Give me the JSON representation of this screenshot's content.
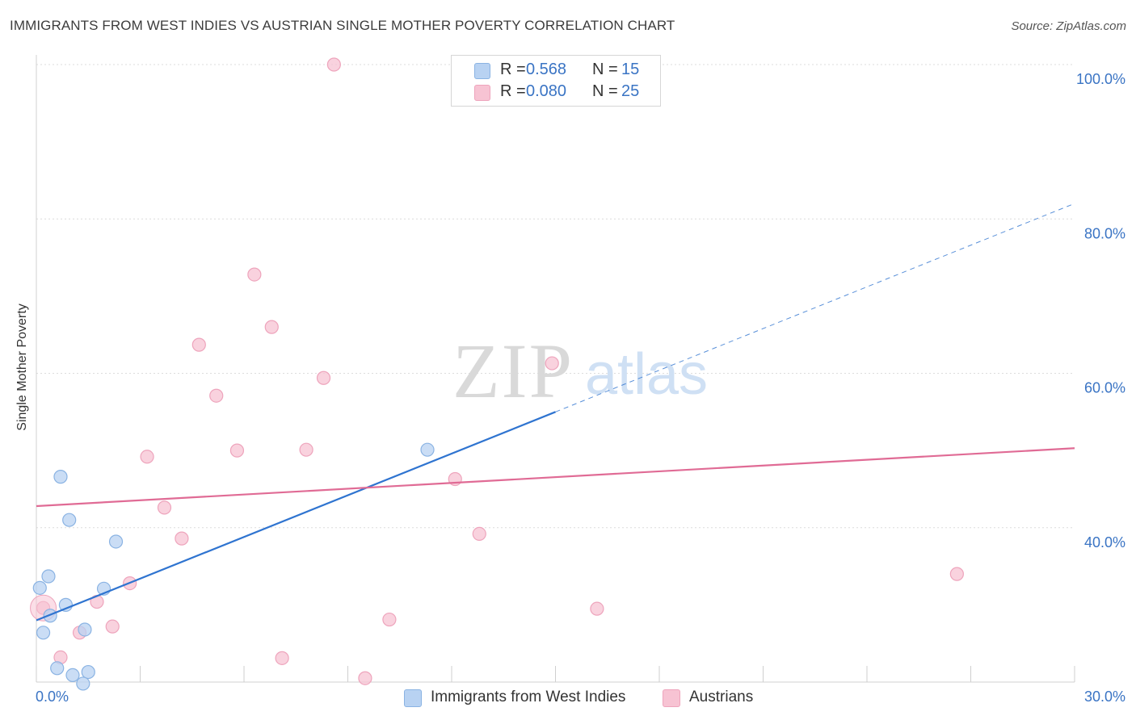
{
  "title": "IMMIGRANTS FROM WEST INDIES VS AUSTRIAN SINGLE MOTHER POVERTY CORRELATION CHART",
  "source": "Source: ZipAtlas.com",
  "watermark": {
    "zip": "ZIP",
    "atlas": "atlas"
  },
  "colors": {
    "blue_fill": "#b8d2f2",
    "blue_stroke": "#8ab3e3",
    "blue_line": "#2f74d0",
    "pink_fill": "#f7c3d3",
    "pink_stroke": "#eea4bc",
    "pink_line": "#e06b95",
    "value_text": "#3a74c4",
    "grid": "#dcdcdc"
  },
  "legend": {
    "r_label": "R =",
    "n_label": "N =",
    "rows": [
      {
        "series": "blue",
        "r": "0.568",
        "n": "15"
      },
      {
        "series": "pink",
        "r": "0.080",
        "n": "25"
      }
    ]
  },
  "chart_data": {
    "type": "scatter",
    "title": "IMMIGRANTS FROM WEST INDIES VS AUSTRIAN SINGLE MOTHER POVERTY CORRELATION CHART",
    "xlabel": "",
    "ylabel": "Single Mother Poverty",
    "xlim": [
      0,
      30
    ],
    "ylim": [
      20,
      100
    ],
    "x_tick_labels": [
      "0.0%",
      "30.0%"
    ],
    "y_tick_labels": [
      {
        "value": 100,
        "label": "100.0%"
      },
      {
        "value": 80,
        "label": "80.0%"
      },
      {
        "value": 60,
        "label": "60.0%"
      },
      {
        "value": 40,
        "label": "40.0%"
      }
    ],
    "grid": true,
    "legend_position": "top-center",
    "series": [
      {
        "name": "Immigrants from West Indies",
        "color": "blue",
        "points": [
          [
            0.1,
            32.2
          ],
          [
            0.35,
            33.7
          ],
          [
            0.4,
            28.6
          ],
          [
            0.2,
            26.4
          ],
          [
            0.7,
            46.6
          ],
          [
            0.95,
            41.0
          ],
          [
            0.85,
            30.0
          ],
          [
            2.3,
            38.2
          ],
          [
            1.95,
            32.1
          ],
          [
            1.4,
            26.8
          ],
          [
            0.6,
            21.8
          ],
          [
            1.05,
            20.9
          ],
          [
            1.5,
            21.3
          ],
          [
            1.35,
            19.8
          ],
          [
            11.3,
            50.1
          ]
        ],
        "trend": {
          "x0": 0,
          "y0": 28.0,
          "x1": 15.0,
          "y1": 55.0,
          "dash_to_x": 30,
          "dash_to_y": 82.0
        }
      },
      {
        "name": "Austrians",
        "color": "pink",
        "points": [
          [
            8.6,
            100.0
          ],
          [
            6.3,
            72.8
          ],
          [
            6.8,
            66.0
          ],
          [
            4.7,
            63.7
          ],
          [
            5.2,
            57.1
          ],
          [
            14.9,
            61.3
          ],
          [
            8.3,
            59.4
          ],
          [
            3.2,
            49.2
          ],
          [
            5.8,
            50.0
          ],
          [
            7.8,
            50.1
          ],
          [
            12.1,
            46.3
          ],
          [
            3.7,
            42.6
          ],
          [
            4.2,
            38.6
          ],
          [
            12.8,
            39.2
          ],
          [
            2.7,
            32.8
          ],
          [
            1.75,
            30.4
          ],
          [
            2.2,
            27.2
          ],
          [
            1.25,
            26.4
          ],
          [
            10.2,
            28.1
          ],
          [
            16.2,
            29.5
          ],
          [
            26.6,
            34.0
          ],
          [
            0.7,
            23.2
          ],
          [
            7.1,
            23.1
          ],
          [
            9.5,
            20.5
          ],
          [
            0.2,
            29.6
          ]
        ],
        "trend": {
          "x0": 0,
          "y0": 42.8,
          "x1": 30,
          "y1": 50.3
        }
      }
    ]
  },
  "bottom_legend": {
    "items": [
      {
        "series": "blue",
        "label": "Immigrants from West Indies"
      },
      {
        "series": "pink",
        "label": "Austrians"
      }
    ]
  }
}
